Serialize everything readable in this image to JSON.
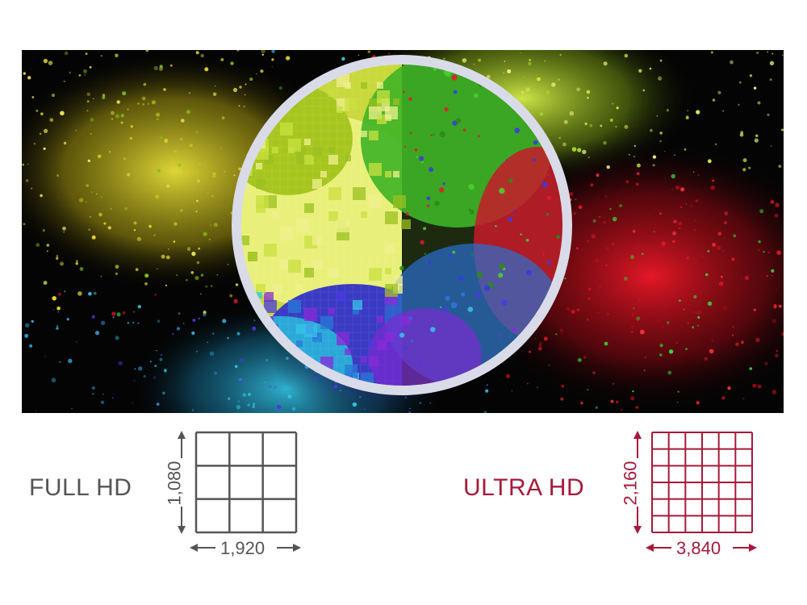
{
  "colors": {
    "full_hd": "#555555",
    "ultra_hd": "#a7193a",
    "lens_ring": "#d9dbe8",
    "background": "#ffffff"
  },
  "hero": {
    "description_icon": "color-powder-explosion-image",
    "lens_icon": "magnifier-lens-icon"
  },
  "full_hd": {
    "label": "FULL HD",
    "vertical": "1,080",
    "horizontal": "1,920",
    "grid_cells": 3
  },
  "ultra_hd": {
    "label": "ULTRA HD",
    "vertical": "2,160",
    "horizontal": "3,840",
    "grid_cells": 6
  }
}
